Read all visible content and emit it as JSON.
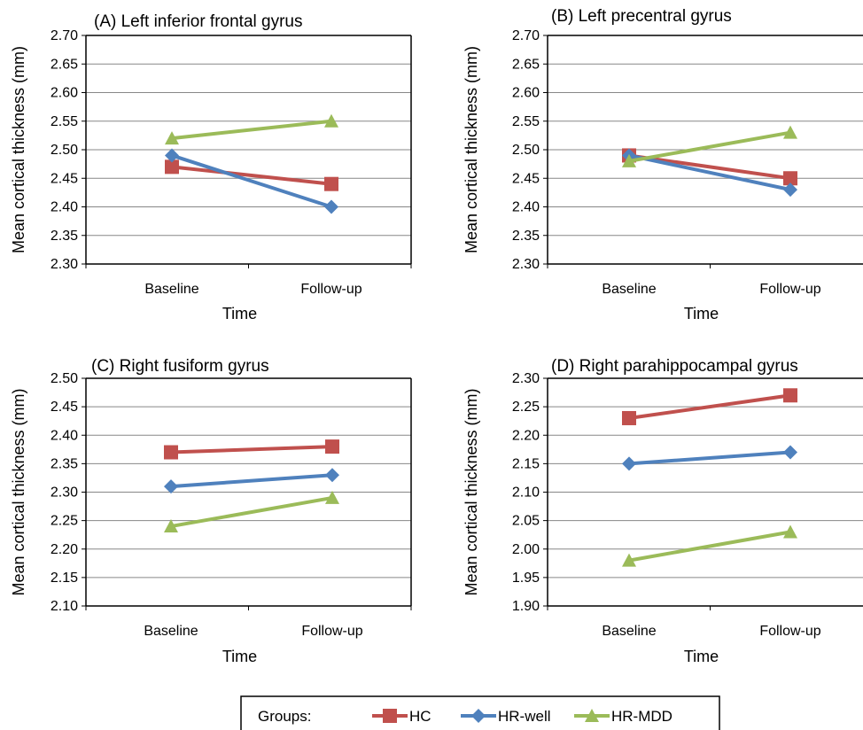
{
  "colors": {
    "HC": "#c0504d",
    "HR-well": "#4f81bd",
    "HR-MDD": "#9bbb59"
  },
  "legend": {
    "heading": "Groups:",
    "items": [
      "HC",
      "HR-well",
      "HR-MDD"
    ]
  },
  "chart_data": [
    {
      "type": "line",
      "title": "(A) Left inferior frontal gyrus",
      "xlabel": "Time",
      "ylabel": "Mean cortical thickness (mm)",
      "categories": [
        "Baseline",
        "Follow-up"
      ],
      "ylim": [
        2.3,
        2.7
      ],
      "ystep": 0.05,
      "yticks": [
        "2.30",
        "2.35",
        "2.40",
        "2.45",
        "2.50",
        "2.55",
        "2.60",
        "2.65",
        "2.70"
      ],
      "grid": true,
      "series": [
        {
          "name": "HC",
          "marker": "square",
          "values": [
            2.47,
            2.44
          ]
        },
        {
          "name": "HR-well",
          "marker": "diamond",
          "values": [
            2.49,
            2.4
          ]
        },
        {
          "name": "HR-MDD",
          "marker": "triangle",
          "values": [
            2.52,
            2.55
          ]
        }
      ]
    },
    {
      "type": "line",
      "title": "(B) Left precentral gyrus",
      "xlabel": "Time",
      "ylabel": "Mean cortical thickness (mm)",
      "categories": [
        "Baseline",
        "Follow-up"
      ],
      "ylim": [
        2.3,
        2.7
      ],
      "ystep": 0.05,
      "yticks": [
        "2.30",
        "2.35",
        "2.40",
        "2.45",
        "2.50",
        "2.55",
        "2.60",
        "2.65",
        "2.70"
      ],
      "grid": true,
      "series": [
        {
          "name": "HC",
          "marker": "square",
          "values": [
            2.49,
            2.45
          ]
        },
        {
          "name": "HR-well",
          "marker": "diamond",
          "values": [
            2.49,
            2.43
          ]
        },
        {
          "name": "HR-MDD",
          "marker": "triangle",
          "values": [
            2.48,
            2.53
          ]
        }
      ]
    },
    {
      "type": "line",
      "title": "(C) Right fusiform gyrus",
      "xlabel": "Time",
      "ylabel": "Mean cortical thickness (mm)",
      "categories": [
        "Baseline",
        "Follow-up"
      ],
      "ylim": [
        2.1,
        2.5
      ],
      "ystep": 0.05,
      "yticks": [
        "2.10",
        "2.15",
        "2.20",
        "2.25",
        "2.30",
        "2.35",
        "2.40",
        "2.45",
        "2.50"
      ],
      "grid": true,
      "series": [
        {
          "name": "HC",
          "marker": "square",
          "values": [
            2.37,
            2.38
          ]
        },
        {
          "name": "HR-well",
          "marker": "diamond",
          "values": [
            2.31,
            2.33
          ]
        },
        {
          "name": "HR-MDD",
          "marker": "triangle",
          "values": [
            2.24,
            2.29
          ]
        }
      ]
    },
    {
      "type": "line",
      "title": "(D) Right parahippocampal gyrus",
      "xlabel": "Time",
      "ylabel": "Mean cortical thickness (mm)",
      "categories": [
        "Baseline",
        "Follow-up"
      ],
      "ylim": [
        1.9,
        2.3
      ],
      "ystep": 0.05,
      "yticks": [
        "1.90",
        "1.95",
        "2.00",
        "2.05",
        "2.10",
        "2.15",
        "2.20",
        "2.25",
        "2.30"
      ],
      "grid": true,
      "series": [
        {
          "name": "HC",
          "marker": "square",
          "values": [
            2.23,
            2.27
          ]
        },
        {
          "name": "HR-well",
          "marker": "diamond",
          "values": [
            2.15,
            2.17
          ]
        },
        {
          "name": "HR-MDD",
          "marker": "triangle",
          "values": [
            1.98,
            2.03
          ]
        }
      ]
    }
  ]
}
